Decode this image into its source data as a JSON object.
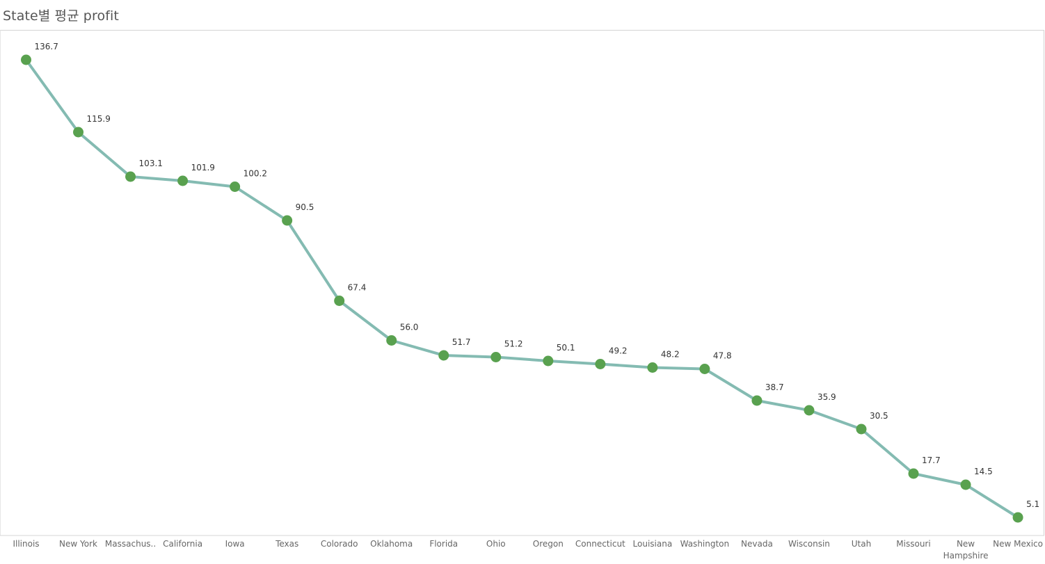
{
  "chart_data": {
    "type": "line",
    "title": "State별 평균 profit",
    "xlabel": "",
    "ylabel": "",
    "categories": [
      "Illinois",
      "New York",
      "Massachus..",
      "California",
      "Iowa",
      "Texas",
      "Colorado",
      "Oklahoma",
      "Florida",
      "Ohio",
      "Oregon",
      "Connecticut",
      "Louisiana",
      "Washington",
      "Nevada",
      "Wisconsin",
      "Utah",
      "Missouri",
      "New Hampshire",
      "New Mexico"
    ],
    "values": [
      136.7,
      115.9,
      103.1,
      101.9,
      100.2,
      90.5,
      67.4,
      56.0,
      51.7,
      51.2,
      50.1,
      49.2,
      48.2,
      47.8,
      38.7,
      35.9,
      30.5,
      17.7,
      14.5,
      5.1
    ],
    "data_labels": [
      "136.7",
      "115.9",
      "103.1",
      "101.9",
      "100.2",
      "90.5",
      "67.4",
      "56.0",
      "51.7",
      "51.2",
      "50.1",
      "49.2",
      "48.2",
      "47.8",
      "38.7",
      "35.9",
      "30.5",
      "17.7",
      "14.5",
      "5.1"
    ],
    "grid": false,
    "legend": "none",
    "colors": {
      "line": "#84bbb2",
      "marker": "#59a14f",
      "title": "#555555",
      "frame": "#d4d4d4"
    }
  }
}
